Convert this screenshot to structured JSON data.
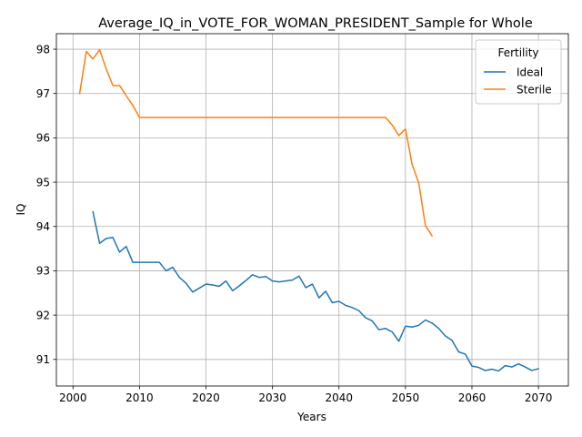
{
  "chart_data": {
    "type": "line",
    "title": "Average_IQ_in_VOTE_FOR_WOMAN_PRESIDENT_Sample for Whole",
    "xlabel": "Years",
    "ylabel": "IQ",
    "xlim": [
      1997.5,
      2074.5
    ],
    "ylim": [
      90.4,
      98.35
    ],
    "xticks": [
      2000,
      2010,
      2020,
      2030,
      2040,
      2050,
      2060,
      2070
    ],
    "yticks": [
      91,
      92,
      93,
      94,
      95,
      96,
      97,
      98
    ],
    "grid": true,
    "legend": {
      "title": "Fertility",
      "placement": "top-right"
    },
    "series": [
      {
        "name": "Ideal",
        "color": "#1f77b4",
        "x": [
          2003,
          2004,
          2005,
          2006,
          2007,
          2008,
          2009,
          2010,
          2011,
          2012,
          2013,
          2014,
          2015,
          2016,
          2017,
          2018,
          2019,
          2020,
          2021,
          2022,
          2023,
          2024,
          2025,
          2026,
          2027,
          2028,
          2029,
          2030,
          2031,
          2032,
          2033,
          2034,
          2035,
          2036,
          2037,
          2038,
          2039,
          2040,
          2041,
          2042,
          2043,
          2044,
          2045,
          2046,
          2047,
          2048,
          2049,
          2050,
          2051,
          2052,
          2053,
          2054,
          2055,
          2056,
          2057,
          2058,
          2059,
          2060,
          2061,
          2062,
          2063,
          2064,
          2065,
          2066,
          2067,
          2068,
          2069,
          2070
        ],
        "y": [
          94.33,
          93.62,
          93.73,
          93.75,
          93.42,
          93.55,
          93.19,
          93.19,
          93.19,
          93.19,
          93.19,
          93.0,
          93.08,
          92.85,
          92.72,
          92.52,
          92.61,
          92.7,
          92.68,
          92.65,
          92.77,
          92.55,
          92.66,
          92.78,
          92.91,
          92.85,
          92.87,
          92.77,
          92.75,
          92.77,
          92.79,
          92.88,
          92.62,
          92.7,
          92.39,
          92.54,
          92.28,
          92.31,
          92.22,
          92.17,
          92.1,
          91.94,
          91.87,
          91.67,
          91.7,
          91.62,
          91.41,
          91.75,
          91.73,
          91.77,
          91.89,
          91.82,
          91.7,
          91.53,
          91.43,
          91.17,
          91.12,
          90.85,
          90.82,
          90.75,
          90.78,
          90.74,
          90.86,
          90.83,
          90.9,
          90.83,
          90.75,
          90.79
        ]
      },
      {
        "name": "Sterile",
        "color": "#ff7f0e",
        "x": [
          2001,
          2002,
          2003,
          2004,
          2005,
          2006,
          2007,
          2008,
          2009,
          2010,
          2011,
          2012,
          2013,
          2014,
          2015,
          2016,
          2017,
          2018,
          2019,
          2020,
          2021,
          2022,
          2023,
          2024,
          2025,
          2026,
          2027,
          2028,
          2029,
          2030,
          2031,
          2032,
          2033,
          2034,
          2035,
          2036,
          2037,
          2038,
          2039,
          2040,
          2041,
          2042,
          2043,
          2044,
          2045,
          2046,
          2047,
          2048,
          2049,
          2050,
          2051,
          2052,
          2053,
          2054
        ],
        "y": [
          97.0,
          97.95,
          97.78,
          97.99,
          97.55,
          97.18,
          97.18,
          96.95,
          96.73,
          96.46,
          96.46,
          96.46,
          96.46,
          96.46,
          96.46,
          96.46,
          96.46,
          96.46,
          96.46,
          96.46,
          96.46,
          96.46,
          96.46,
          96.46,
          96.46,
          96.46,
          96.46,
          96.46,
          96.46,
          96.46,
          96.46,
          96.46,
          96.46,
          96.46,
          96.46,
          96.46,
          96.46,
          96.46,
          96.46,
          96.46,
          96.46,
          96.46,
          96.46,
          96.46,
          96.46,
          96.46,
          96.46,
          96.29,
          96.05,
          96.2,
          95.4,
          94.98,
          94.02,
          93.79
        ]
      }
    ]
  }
}
